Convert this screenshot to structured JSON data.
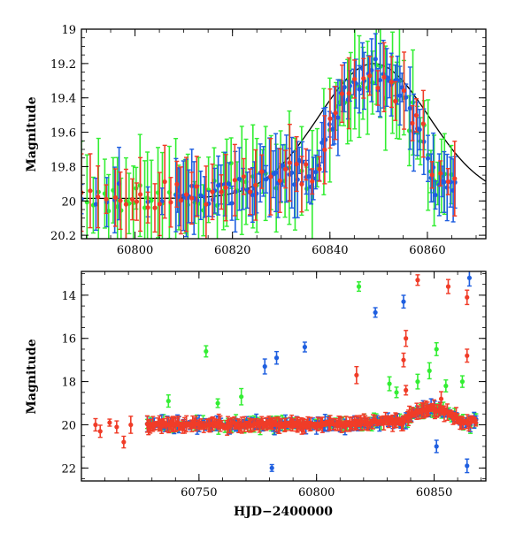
{
  "chart_data": [
    {
      "type": "scatter",
      "title": "",
      "xlabel": "",
      "ylabel": "Magnitude",
      "xlim": [
        60789,
        60872
      ],
      "ylim": [
        20.22,
        19.0
      ],
      "y_inverted": true,
      "x_ticks": [
        60800,
        60820,
        60840,
        60860
      ],
      "y_ticks": [
        19,
        19.2,
        19.4,
        19.6,
        19.8,
        20,
        20.2
      ],
      "x_tick_labels": [
        "60800",
        "60820",
        "60840",
        "60860"
      ],
      "y_tick_labels": [
        "19",
        "19.2",
        "19.4",
        "19.6",
        "19.8",
        "20",
        "20.2"
      ],
      "model_curve": {
        "t0": 60849,
        "peak": 19.2,
        "base": 19.985,
        "width": 16
      },
      "colors": {
        "green": "#33ee33",
        "blue": "#1f5fe0",
        "red": "#f03c28",
        "model": "#000000"
      },
      "series": [
        {
          "color": "green",
          "x_range": [
            60789,
            60866
          ],
          "typical_err": 0.15
        },
        {
          "color": "blue",
          "x_range": [
            60789,
            60866
          ],
          "typical_err": 0.09
        },
        {
          "color": "red",
          "x_range": [
            60789,
            60866
          ],
          "typical_err": 0.1
        }
      ]
    },
    {
      "type": "scatter",
      "title": "",
      "xlabel": "HJD−2400000",
      "ylabel": "Magnitude",
      "xlim": [
        60700,
        60872
      ],
      "ylim": [
        22.6,
        12.9
      ],
      "y_inverted": true,
      "x_ticks": [
        60750,
        60800,
        60850
      ],
      "y_ticks": [
        14,
        16,
        18,
        20,
        22
      ],
      "x_tick_labels": [
        "60750",
        "60800",
        "60850"
      ],
      "y_tick_labels": [
        "14",
        "16",
        "18",
        "20",
        "22"
      ],
      "colors": {
        "green": "#33ee33",
        "blue": "#1f5fe0",
        "red": "#f03c28",
        "model": "#000000"
      },
      "outliers": [
        {
          "c": "red",
          "x": 60706,
          "y": 20.0
        },
        {
          "c": "red",
          "x": 60708,
          "y": 20.3
        },
        {
          "c": "red",
          "x": 60712,
          "y": 19.9
        },
        {
          "c": "red",
          "x": 60715,
          "y": 20.1
        },
        {
          "c": "red",
          "x": 60718,
          "y": 20.8
        },
        {
          "c": "red",
          "x": 60721,
          "y": 20.0
        },
        {
          "c": "green",
          "x": 60737,
          "y": 18.9
        },
        {
          "c": "green",
          "x": 60753,
          "y": 16.6
        },
        {
          "c": "green",
          "x": 60758,
          "y": 19.0
        },
        {
          "c": "green",
          "x": 60768,
          "y": 18.7
        },
        {
          "c": "blue",
          "x": 60778,
          "y": 17.3
        },
        {
          "c": "blue",
          "x": 60783,
          "y": 16.9
        },
        {
          "c": "blue",
          "x": 60781,
          "y": 22.0
        },
        {
          "c": "blue",
          "x": 60795,
          "y": 16.4
        },
        {
          "c": "green",
          "x": 60818,
          "y": 13.6
        },
        {
          "c": "red",
          "x": 60817,
          "y": 17.7
        },
        {
          "c": "blue",
          "x": 60825,
          "y": 14.8
        },
        {
          "c": "green",
          "x": 60831,
          "y": 18.1
        },
        {
          "c": "green",
          "x": 60834,
          "y": 18.5
        },
        {
          "c": "blue",
          "x": 60837,
          "y": 14.3
        },
        {
          "c": "red",
          "x": 60838,
          "y": 16.0
        },
        {
          "c": "red",
          "x": 60837,
          "y": 17.0
        },
        {
          "c": "red",
          "x": 60838,
          "y": 18.4
        },
        {
          "c": "red",
          "x": 60843,
          "y": 13.3
        },
        {
          "c": "green",
          "x": 60843,
          "y": 18.0
        },
        {
          "c": "green",
          "x": 60848,
          "y": 17.5
        },
        {
          "c": "green",
          "x": 60851,
          "y": 16.5
        },
        {
          "c": "green",
          "x": 60855,
          "y": 18.2
        },
        {
          "c": "red",
          "x": 60853,
          "y": 18.8
        },
        {
          "c": "red",
          "x": 60856,
          "y": 13.6
        },
        {
          "c": "blue",
          "x": 60851,
          "y": 21.0
        },
        {
          "c": "red",
          "x": 60864,
          "y": 14.1
        },
        {
          "c": "red",
          "x": 60864,
          "y": 16.8
        },
        {
          "c": "blue",
          "x": 60865,
          "y": 13.2
        },
        {
          "c": "blue",
          "x": 60864,
          "y": 21.9
        },
        {
          "c": "green",
          "x": 60862,
          "y": 18.0
        }
      ]
    }
  ]
}
